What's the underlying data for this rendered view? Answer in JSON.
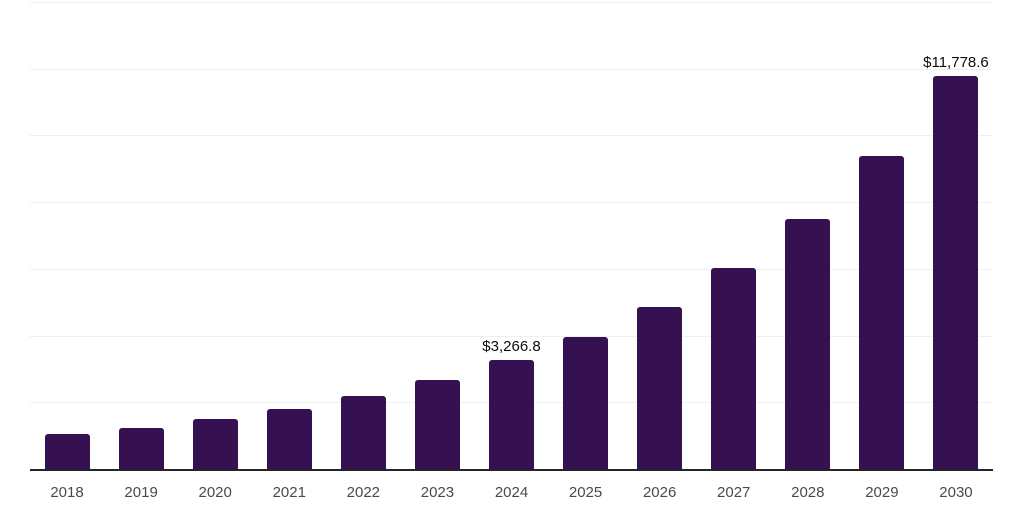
{
  "chart": {
    "background_color": "#ffffff",
    "bar_color": "#361152",
    "axis_line_color": "#252525",
    "gridline_color": "#efefef",
    "tick_label_color": "#4a4a4a",
    "data_label_color": "#0d0d0d"
  },
  "chart_data": {
    "type": "bar",
    "title": "",
    "xlabel": "",
    "ylabel": "",
    "categories": [
      "2018",
      "2019",
      "2020",
      "2021",
      "2022",
      "2023",
      "2024",
      "2025",
      "2026",
      "2027",
      "2028",
      "2029",
      "2030"
    ],
    "values": [
      1050,
      1230,
      1500,
      1800,
      2190,
      2670,
      3266.8,
      3960,
      4860,
      6020,
      7490,
      9380,
      11778.6
    ],
    "data_labels": {
      "2024": "$3,266.8",
      "2030": "$11,778.6"
    },
    "ylim": [
      0,
      14000
    ],
    "grid_interval": 2000,
    "grid": true,
    "legend": false,
    "y_axis_ticks_visible": false
  }
}
